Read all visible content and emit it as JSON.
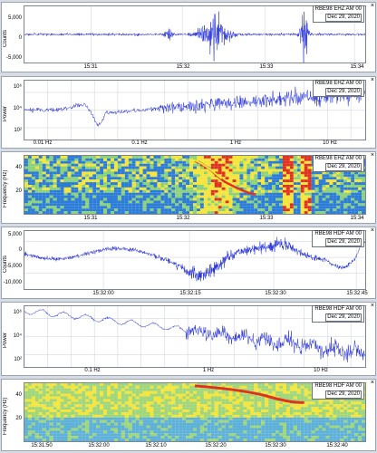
{
  "panels": [
    {
      "kind": "waveform",
      "station": "RBE98 EHZ AM 00",
      "date": "Dec 29, 2020",
      "ylabel": "Counts",
      "yticks": [
        "5,000",
        "0",
        "-5,000"
      ],
      "xticks": [
        "15:31",
        "15:32",
        "15:33",
        "15:34"
      ],
      "close_glyph": "×"
    },
    {
      "kind": "spectrum",
      "station": "RBE98 EHZ AM 00",
      "date": "Dec 29, 2020",
      "ylabel": "Power",
      "yticks": [
        "10⁶",
        "10⁴",
        "10²"
      ],
      "xticks": [
        "0.01 Hz",
        "0.1 Hz",
        "1 Hz",
        "10 Hz"
      ],
      "close_glyph": "×"
    },
    {
      "kind": "spectrogram",
      "station": "RBE98 EHZ AM 00",
      "date": "Dec 29, 2020",
      "ylabel": "Frequency (Hz)",
      "yticks": [
        "40",
        "20"
      ],
      "xticks": [
        "15:31",
        "15:32",
        "15:33",
        "15:34"
      ],
      "close_glyph": "×"
    },
    {
      "kind": "waveform",
      "station": "RBE98 HDF AM 00",
      "date": "Dec 29, 2020",
      "ylabel": "Counts",
      "yticks": [
        "5,000",
        "0",
        "-5,000",
        "-10,000"
      ],
      "xticks": [
        "15:32:00",
        "15:32:15",
        "15:32:30",
        "15:32:45"
      ],
      "close_glyph": "×"
    },
    {
      "kind": "spectrum",
      "station": "RBE98 HDF AM 00",
      "date": "Dec 29, 2020",
      "ylabel": "Power",
      "yticks": [
        "10⁶",
        "10⁴",
        "10²"
      ],
      "xticks": [
        "0.1 Hz",
        "1 Hz",
        "10 Hz"
      ],
      "close_glyph": "×"
    },
    {
      "kind": "spectrogram",
      "station": "RBE98 HDF AM 00",
      "date": "Dec 29, 2020",
      "ylabel": "Frequency (Hz)",
      "yticks": [
        "40",
        "20"
      ],
      "xticks": [
        "15:31:50",
        "15:32:00",
        "15:32:10",
        "15:32:20",
        "15:32:30",
        "15:32:40"
      ],
      "close_glyph": "×"
    }
  ],
  "colors": {
    "trace": "#1f2bd6",
    "spectrogram_low": "#2b7bd8",
    "spectrogram_mid": "#f5e43a",
    "spectrogram_high": "#e0301e"
  }
}
